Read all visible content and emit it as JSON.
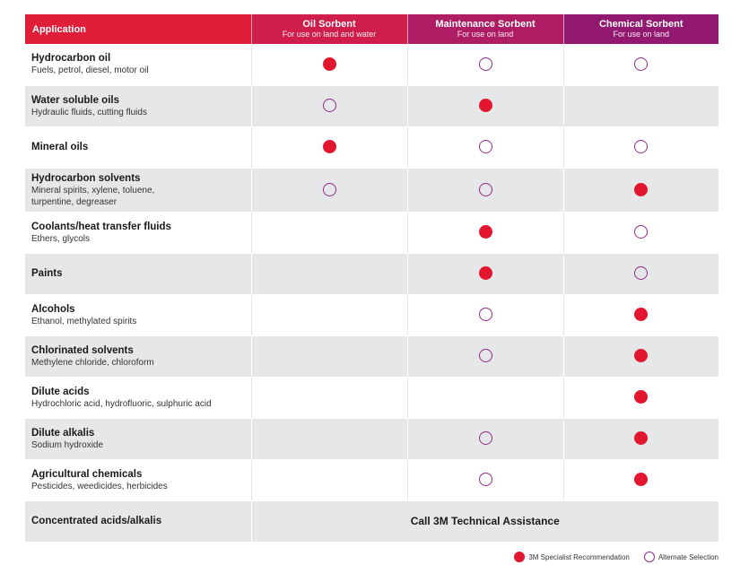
{
  "header": {
    "application": "Application",
    "columns": [
      {
        "title": "Oil Sorbent",
        "subtitle": "For use on land and water"
      },
      {
        "title": "Maintenance Sorbent",
        "subtitle": "For use on land"
      },
      {
        "title": "Chemical Sorbent",
        "subtitle": "For use on land"
      }
    ]
  },
  "rows": [
    {
      "name": "Hydrocarbon oil",
      "desc": "Fuels, petrol, diesel, motor oil",
      "oil": "rec",
      "maint": "alt",
      "chem": "alt"
    },
    {
      "name": "Water soluble oils",
      "desc": "Hydraulic fluids, cutting fluids",
      "oil": "alt",
      "maint": "rec",
      "chem": ""
    },
    {
      "name": "Mineral oils",
      "desc": "",
      "oil": "rec",
      "maint": "alt",
      "chem": "alt"
    },
    {
      "name": "Hydrocarbon solvents",
      "desc": "Mineral spirits, xylene, toluene,",
      "desc2": "turpentine, degreaser",
      "oil": "alt",
      "maint": "alt",
      "chem": "rec"
    },
    {
      "name": "Coolants/heat transfer fluids",
      "desc": "Ethers, glycols",
      "oil": "",
      "maint": "rec",
      "chem": "alt"
    },
    {
      "name": "Paints",
      "desc": "",
      "oil": "",
      "maint": "rec",
      "chem": "alt"
    },
    {
      "name": "Alcohols",
      "desc": "Ethanol, methylated spirits",
      "oil": "",
      "maint": "alt",
      "chem": "rec"
    },
    {
      "name": "Chlorinated solvents",
      "desc": "Methylene chloride, chloroform",
      "oil": "",
      "maint": "alt",
      "chem": "rec"
    },
    {
      "name": "Dilute acids",
      "desc": "Hydrochloric acid, hydrofluoric, sulphuric acid",
      "oil": "",
      "maint": "",
      "chem": "rec"
    },
    {
      "name": "Dilute alkalis",
      "desc": "Sodium hydroxide",
      "oil": "",
      "maint": "alt",
      "chem": "rec"
    },
    {
      "name": "Agricultural chemicals",
      "desc": "Pesticides, weedicides, herbicides",
      "oil": "",
      "maint": "alt",
      "chem": "rec"
    }
  ],
  "last_row": {
    "name": "Concentrated acids/alkalis",
    "note": "Call 3M Technical Assistance"
  },
  "legend": {
    "recommendation": "3M Specialist Recommendation",
    "alternate": "Alternate Selection"
  },
  "colors": {
    "recommendation": "#e3162f",
    "alternate": "#8e2a86",
    "header_start": "#e01e3a",
    "header_end": "#92196f",
    "row_shade": "#e6e7e8"
  }
}
